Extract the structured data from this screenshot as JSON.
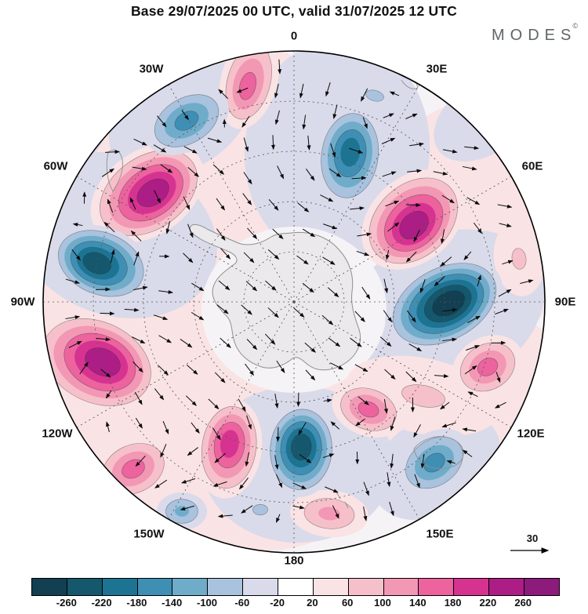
{
  "header": {
    "title": "Base 29/07/2025 00 UTC, valid 31/07/2025 12 UTC"
  },
  "logo": {
    "text": "MODES",
    "symbol": "©"
  },
  "map": {
    "projection": "south-polar",
    "lon_labels": [
      {
        "text": "0"
      },
      {
        "text": "30E"
      },
      {
        "text": "60E"
      },
      {
        "text": "90E"
      },
      {
        "text": "120E"
      },
      {
        "text": "150E"
      },
      {
        "text": "180"
      },
      {
        "text": "150W"
      },
      {
        "text": "120W"
      },
      {
        "text": "90W"
      },
      {
        "text": "60W"
      },
      {
        "text": "30W"
      }
    ]
  },
  "vector_scale": {
    "value": "30"
  },
  "colorbar": {
    "tick_labels": [
      "-260",
      "-220",
      "-180",
      "-140",
      "-100",
      "-60",
      "-20",
      "20",
      "60",
      "100",
      "140",
      "180",
      "220",
      "260"
    ],
    "colors": [
      "#123f51",
      "#15586e",
      "#1d7492",
      "#3f8fb5",
      "#6facca",
      "#a9c2de",
      "#d9daea",
      "#ffffff",
      "#fae3e4",
      "#f6c0ca",
      "#f297b4",
      "#ec639e",
      "#d63391",
      "#ac1e85",
      "#8c1b7b"
    ]
  }
}
